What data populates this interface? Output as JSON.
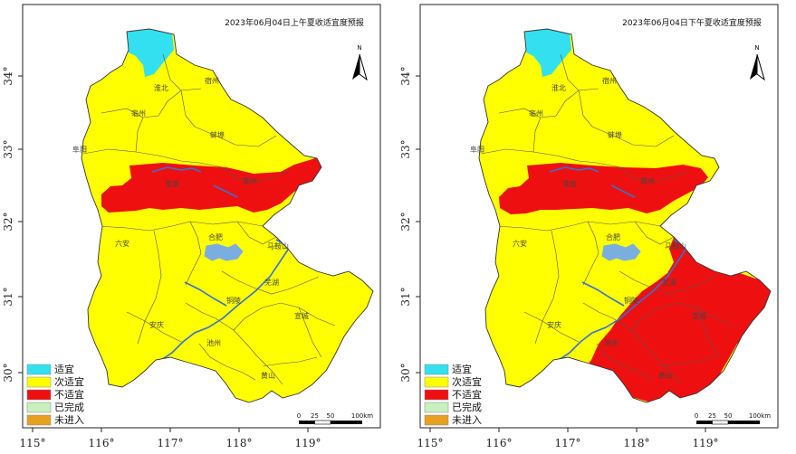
{
  "colors": {
    "suitable": "#33e0f0",
    "sub_suitable": "#ffff00",
    "unsuitable": "#ee1010",
    "completed": "#c8f0c0",
    "not_entered": "#e8a020",
    "lake": "#7aaee0",
    "river": "#3a70d0",
    "boundary": "#555555",
    "frame": "#222222"
  },
  "axes": {
    "x_ticks": [
      "115°",
      "116°",
      "117°",
      "118°",
      "119°"
    ],
    "y_ticks": [
      "34°",
      "33°",
      "32°",
      "31°",
      "30°"
    ]
  },
  "legend": [
    {
      "label": "适宜",
      "color_key": "suitable"
    },
    {
      "label": "次适宜",
      "color_key": "sub_suitable"
    },
    {
      "label": "不适宜",
      "color_key": "unsuitable"
    },
    {
      "label": "已完成",
      "color_key": "completed"
    },
    {
      "label": "未进入",
      "color_key": "not_entered"
    }
  ],
  "scale_bar": {
    "ticks": [
      "0",
      "25",
      "50",
      "100"
    ],
    "unit": "km"
  },
  "north_label": "N",
  "maps": [
    {
      "title": "2023年06月04日上午夏收适宜度预报",
      "cities": [
        "淮北",
        "宿州",
        "亳州",
        "蚌埠",
        "阜阳",
        "淮南",
        "滁州",
        "六安",
        "合肥",
        "马鞍山",
        "芜湖",
        "铜陵",
        "宣城",
        "安庆",
        "池州",
        "黄山"
      ]
    },
    {
      "title": "2023年06月04日下午夏收适宜度预报",
      "cities": [
        "淮北",
        "宿州",
        "亳州",
        "蚌埠",
        "阜阳",
        "淮南",
        "滁州",
        "六安",
        "合肥",
        "马鞍山",
        "芜湖",
        "铜陵",
        "宣城",
        "安庆",
        "池州",
        "黄山"
      ]
    }
  ]
}
